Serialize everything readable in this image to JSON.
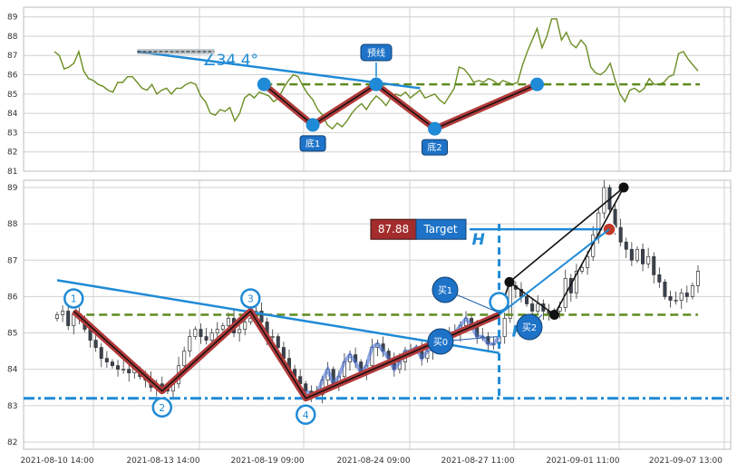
{
  "chart_data": [
    {
      "type": "line",
      "panel": "top",
      "ylim": [
        81,
        89.5
      ],
      "yticks": [
        "81",
        "82",
        "83",
        "84",
        "85",
        "86",
        "87",
        "88",
        "89"
      ],
      "line_color": "#6b8e23",
      "series": [
        {
          "values": [
            87.2,
            87.0,
            86.3,
            86.4,
            86.6,
            87.2,
            86.2,
            85.8,
            85.7,
            85.5,
            85.4,
            85.2,
            85.1,
            85.6,
            85.6,
            85.9,
            85.9,
            85.6,
            85.3,
            85.2,
            85.5,
            85.0,
            85.2,
            85.3,
            85.0,
            85.3,
            85.3,
            85.5,
            85.6,
            85.5,
            84.9,
            84.6,
            84.0,
            83.9,
            84.2,
            84.1,
            84.3,
            83.6,
            84.0,
            84.8,
            85.0,
            84.8,
            85.1,
            85.0,
            84.9,
            84.6,
            84.8,
            85.3,
            85.7,
            86.0,
            85.9,
            85.4,
            85.0,
            84.7,
            84.2,
            83.9,
            83.4,
            83.2,
            83.5,
            83.3,
            83.6,
            84.0,
            84.3,
            84.5,
            84.2,
            84.6,
            84.9,
            84.7,
            84.4,
            84.8,
            85.0,
            84.9,
            85.1,
            84.8,
            85.0,
            85.2,
            84.8,
            84.9,
            85.0,
            84.7,
            84.5,
            84.9,
            85.3,
            86.4,
            86.3,
            86.0,
            85.6,
            85.7,
            85.6,
            85.8,
            85.7,
            85.5,
            85.7,
            85.6,
            85.5,
            85.6,
            86.5,
            87.2,
            87.8,
            88.4,
            87.4,
            88.0,
            88.9,
            88.9,
            87.8,
            88.2,
            87.6,
            87.4,
            87.8,
            87.5,
            86.4,
            86.1,
            86.0,
            86.2,
            86.6,
            85.7,
            85.0,
            84.6,
            85.2,
            85.3,
            85.1,
            85.3,
            85.8,
            85.5,
            85.5,
            85.6,
            85.9,
            86.0,
            87.1,
            87.2,
            86.8,
            86.5,
            86.2
          ]
        }
      ],
      "threshold": 85.5,
      "pattern_points": [
        {
          "x": 43,
          "y": 85.5
        },
        {
          "x": 53,
          "y": 83.4
        },
        {
          "x": 66,
          "y": 85.5
        },
        {
          "x": 78,
          "y": 83.2
        },
        {
          "x": 99,
          "y": 85.5
        }
      ],
      "trend_line": [
        {
          "x": 17,
          "y": 87.2
        },
        {
          "x": 75,
          "y": 85.3
        }
      ],
      "angle_label": "∠34.4°",
      "forecast_label": "预线",
      "bottom_labels": [
        "底1",
        "底2"
      ]
    },
    {
      "type": "candlestick",
      "panel": "bottom",
      "ylim": [
        81.8,
        89.2
      ],
      "yticks": [
        "82",
        "83",
        "84",
        "85",
        "86",
        "87",
        "88",
        "89"
      ],
      "x_ticks": [
        "2021-08-10 14:00",
        "2021-08-13 14:00",
        "2021-08-19 09:00",
        "2021-08-24 09:00",
        "2021-08-27 11:00",
        "2021-09-01 11:00",
        "2021-09-07 13:00"
      ],
      "closes": [
        85.5,
        85.6,
        85.2,
        85.5,
        85.4,
        85.1,
        84.8,
        84.6,
        84.3,
        84.2,
        84.1,
        84.0,
        84.0,
        83.9,
        84.0,
        83.8,
        83.7,
        83.5,
        83.6,
        83.5,
        83.4,
        83.6,
        84.1,
        84.5,
        84.9,
        85.1,
        84.9,
        84.8,
        85.0,
        85.1,
        85.2,
        85.4,
        85.0,
        85.1,
        85.3,
        85.4,
        85.6,
        85.3,
        84.9,
        84.9,
        84.6,
        84.3,
        84.0,
        83.8,
        83.6,
        83.4,
        83.3,
        83.3,
        83.7,
        84.0,
        83.6,
        83.8,
        84.2,
        84.4,
        84.2,
        83.9,
        84.1,
        84.6,
        84.7,
        84.5,
        84.3,
        84.0,
        84.2,
        84.5,
        84.5,
        84.6,
        84.3,
        84.5,
        84.6,
        84.7,
        84.9,
        85.0,
        85.0,
        85.2,
        85.4,
        85.2,
        84.9,
        84.9,
        84.7,
        84.7,
        84.9,
        85.4,
        86.3,
        86.2,
        86.0,
        85.8,
        85.6,
        85.8,
        85.6,
        85.5,
        85.6,
        85.7,
        86.5,
        86.1,
        86.7,
        86.8,
        87.1,
        87.7,
        88.3,
        89.0,
        88.4,
        87.9,
        87.5,
        87.3,
        87.0,
        87.3,
        86.9,
        87.1,
        86.6,
        86.4,
        86.0,
        85.9,
        85.9,
        86.1,
        86.0,
        86.3,
        86.7
      ],
      "threshold": 85.5,
      "neckline_low": 83.2,
      "pattern_points": [
        {
          "x": 3,
          "y": 85.6
        },
        {
          "x": 19,
          "y": 83.4
        },
        {
          "x": 35,
          "y": 85.6
        },
        {
          "x": 45,
          "y": 83.2
        },
        {
          "x": 80,
          "y": 85.5
        }
      ],
      "trend_line": [
        {
          "x": 0,
          "y": 86.45
        },
        {
          "x": 80,
          "y": 84.45
        }
      ],
      "circle_labels": [
        "1",
        "2",
        "3",
        "4"
      ],
      "buy_labels": [
        "买0",
        "买1",
        "买2"
      ],
      "height_label": "H",
      "target_value": "87.88",
      "target_label": "Target"
    }
  ]
}
